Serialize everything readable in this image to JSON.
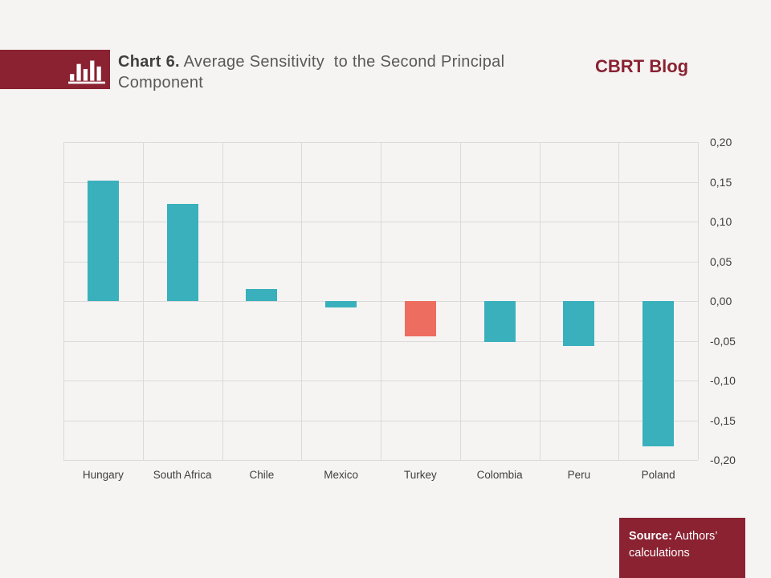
{
  "header": {
    "icon": "bar-chart-icon",
    "title_prefix": "Chart 6.",
    "title_rest": " Average Sensitivity  to the Second Principal Component",
    "brand": "CBRT Blog"
  },
  "chart_data": {
    "type": "bar",
    "title": "Chart 6. Average Sensitivity to the Second Principal Component",
    "categories": [
      "Hungary",
      "South Africa",
      "Chile",
      "Mexico",
      "Turkey",
      "Colombia",
      "Peru",
      "Poland"
    ],
    "values": [
      0.152,
      0.122,
      0.015,
      -0.008,
      -0.044,
      -0.052,
      -0.057,
      -0.183
    ],
    "highlight_category": "Turkey",
    "bar_color": "#3AB0BD",
    "highlight_color": "#ED6E60",
    "ylim": [
      -0.2,
      0.2
    ],
    "ytick_step": 0.05,
    "ytick_labels": [
      "0,20",
      "0,15",
      "0,10",
      "0,05",
      "0,00",
      "-0,05",
      "-0,10",
      "-0,15",
      "-0,20"
    ],
    "decimal_separator": ",",
    "grid": true,
    "legend": "none",
    "gridline_color": "#DBDADA",
    "xlabel": "",
    "ylabel": ""
  },
  "footer": {
    "source_label": "Source:",
    "source_text": "Authors’ calculations"
  },
  "colors": {
    "background": "#F5F4F3",
    "brand_maroon": "#8A2232",
    "title_bold": "#3F3F3F",
    "title_gray": "#595959",
    "tick_text": "#3F3F3F"
  }
}
